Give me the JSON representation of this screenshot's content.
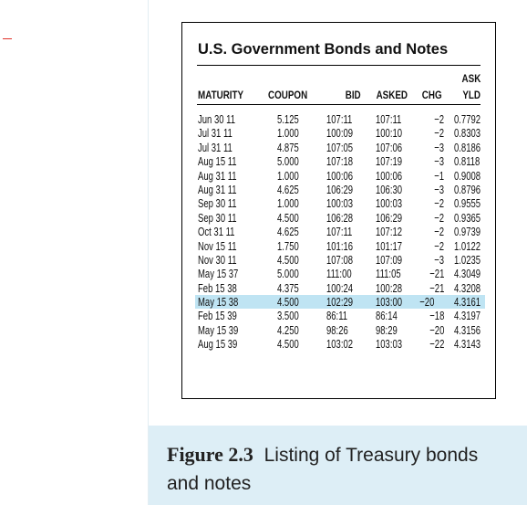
{
  "table": {
    "title": "U.S. Government Bonds and Notes",
    "headers": {
      "maturity": "MATURITY",
      "coupon": "COUPON",
      "bid": "BID",
      "asked": "ASKED",
      "chg": "CHG",
      "ask_yld_line1": "ASK",
      "ask_yld_line2": "YLD"
    },
    "rows": [
      {
        "maturity": "Jun  30  11",
        "coupon": "5.125",
        "bid": "107:11",
        "asked": "107:11",
        "chg": "−2",
        "ask_yld": "0.7792",
        "highlight": false
      },
      {
        "maturity": "Jul  31  11",
        "coupon": "1.000",
        "bid": "100:09",
        "asked": "100:10",
        "chg": "−2",
        "ask_yld": "0.8303",
        "highlight": false
      },
      {
        "maturity": "Jul  31  11",
        "coupon": "4.875",
        "bid": "107:05",
        "asked": "107:06",
        "chg": "−3",
        "ask_yld": "0.8186",
        "highlight": false
      },
      {
        "maturity": "Aug  15  11",
        "coupon": "5.000",
        "bid": "107:18",
        "asked": "107:19",
        "chg": "−3",
        "ask_yld": "0.8118",
        "highlight": false
      },
      {
        "maturity": "Aug  31  11",
        "coupon": "1.000",
        "bid": "100:06",
        "asked": "100:06",
        "chg": "−1",
        "ask_yld": "0.9008",
        "highlight": false
      },
      {
        "maturity": "Aug  31  11",
        "coupon": "4.625",
        "bid": "106:29",
        "asked": "106:30",
        "chg": "−3",
        "ask_yld": "0.8796",
        "highlight": false
      },
      {
        "maturity": "Sep  30  11",
        "coupon": "1.000",
        "bid": "100:03",
        "asked": "100:03",
        "chg": "−2",
        "ask_yld": "0.9555",
        "highlight": false
      },
      {
        "maturity": "Sep  30  11",
        "coupon": "4.500",
        "bid": "106:28",
        "asked": "106:29",
        "chg": "−2",
        "ask_yld": "0.9365",
        "highlight": false
      },
      {
        "maturity": "Oct  31  11",
        "coupon": "4.625",
        "bid": "107:11",
        "asked": "107:12",
        "chg": "−2",
        "ask_yld": "0.9739",
        "highlight": false
      },
      {
        "maturity": "Nov  15  11",
        "coupon": "1.750",
        "bid": "101:16",
        "asked": "101:17",
        "chg": "−2",
        "ask_yld": "1.0122",
        "highlight": false
      },
      {
        "maturity": "Nov  30  11",
        "coupon": "4.500",
        "bid": "107:08",
        "asked": "107:09",
        "chg": "−3",
        "ask_yld": "1.0235",
        "highlight": false
      },
      {
        "maturity": "May  15  37",
        "coupon": "5.000",
        "bid": "111:00",
        "asked": "111:05",
        "chg": "−21",
        "ask_yld": "4.3049",
        "highlight": false
      },
      {
        "maturity": "Feb  15  38",
        "coupon": "4.375",
        "bid": "100:24",
        "asked": "100:28",
        "chg": "−21",
        "ask_yld": "4.3208",
        "highlight": false
      },
      {
        "maturity": "May  15  38",
        "coupon": "4.500",
        "bid": "102:29",
        "asked": "103:00",
        "chg": "−20",
        "ask_yld": "4.3161",
        "highlight": true
      },
      {
        "maturity": "Feb  15  39",
        "coupon": "3.500",
        "bid": "86:11",
        "asked": "86:14",
        "chg": "−18",
        "ask_yld": "4.3197",
        "highlight": false
      },
      {
        "maturity": "May  15  39",
        "coupon": "4.250",
        "bid": "98:26",
        "asked": "98:29",
        "chg": "−20",
        "ask_yld": "4.3156",
        "highlight": false
      },
      {
        "maturity": "Aug  15  39",
        "coupon": "4.500",
        "bid": "103:02",
        "asked": "103:03",
        "chg": "−22",
        "ask_yld": "4.3143",
        "highlight": false
      }
    ]
  },
  "caption": {
    "label": "Figure 2.3",
    "text": "Listing of Treasury bonds and notes"
  },
  "colors": {
    "highlight": "#bfe4f3",
    "caption_background": "#ddeef6",
    "margin_mark": "#e0322b"
  }
}
